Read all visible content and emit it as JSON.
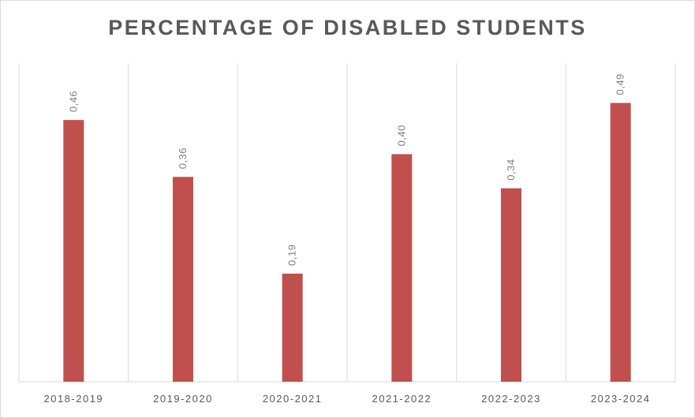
{
  "chart_data": {
    "type": "bar",
    "title": "PERCENTAGE OF DISABLED STUDENTS",
    "categories": [
      "2018-2019",
      "2019-2020",
      "2020-2021",
      "2021-2022",
      "2022-2023",
      "2023-2024"
    ],
    "values": [
      0.46,
      0.36,
      0.19,
      0.4,
      0.34,
      0.49
    ],
    "value_labels": [
      "0,46",
      "0,36",
      "0,19",
      "0,40",
      "0,34",
      "0,49"
    ],
    "ylim": [
      0,
      0.56
    ],
    "grid": "vertical-category-separators",
    "legend": "none",
    "bar_color": "#c0504d",
    "axis_color": "#d9d9d9",
    "label_color": "#595959"
  }
}
